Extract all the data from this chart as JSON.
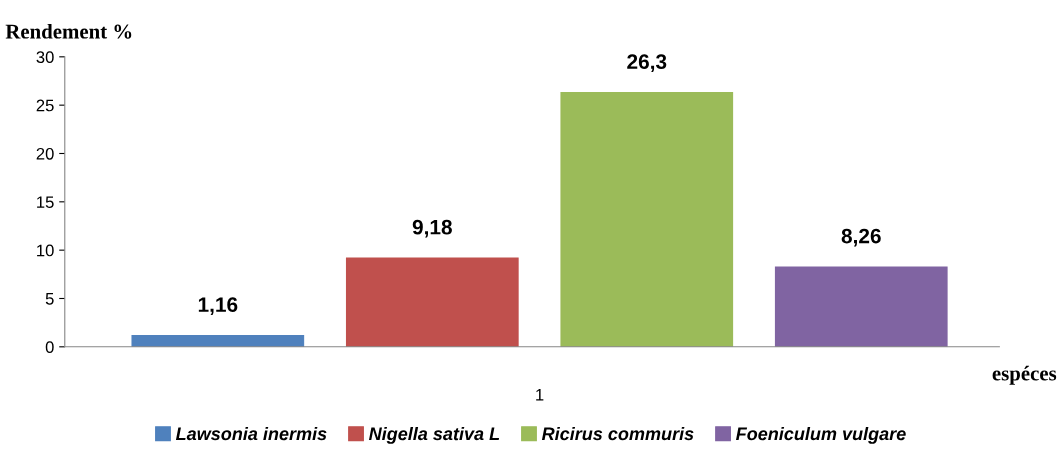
{
  "chart_data": {
    "type": "bar",
    "ylabel": "Rendement %",
    "xlabel": "espéces",
    "categories": [
      "1"
    ],
    "series": [
      {
        "name": "Lawsonia inermis",
        "color": "#4f81bd",
        "values": [
          1.16
        ],
        "value_labels": [
          "1,16"
        ]
      },
      {
        "name": "Nigella sativa L",
        "color": "#c0504d",
        "values": [
          9.18
        ],
        "value_labels": [
          "9,18"
        ]
      },
      {
        "name": "Ricirus commuris",
        "color": "#9bbb59",
        "values": [
          26.3
        ],
        "value_labels": [
          "26,3"
        ]
      },
      {
        "name": "Foeniculum vulgare",
        "color": "#8064a2",
        "values": [
          8.26
        ],
        "value_labels": [
          "8,26"
        ]
      }
    ],
    "ylim": [
      0,
      30
    ],
    "yticks": [
      0,
      5,
      10,
      15,
      20,
      25,
      30
    ],
    "grid": false,
    "legend": "bottom"
  }
}
